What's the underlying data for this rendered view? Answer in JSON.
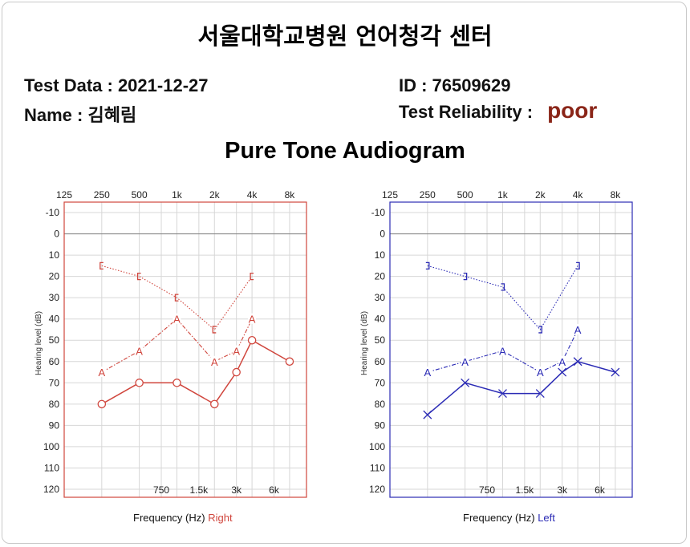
{
  "header": {
    "hospital": "서울대학교병원 언어청각 센터",
    "test_date_label": "Test Data : 2021-12-27",
    "name_label": "Name : 김혜림",
    "id_label": "ID : 76509629",
    "reliability_label": "Test Reliability :",
    "reliability_value": "poor"
  },
  "colors": {
    "right": "#d0463d",
    "left": "#2b2bb5",
    "poor": "#8a2518"
  },
  "chart_data": {
    "type": "line",
    "title": "Pure Tone Audiogram",
    "xlabel": "Frequency (Hz)",
    "ylabel": "Hearing level (dB)",
    "x_top_ticks": [
      "125",
      "250",
      "500",
      "1k",
      "2k",
      "4k",
      "8k"
    ],
    "x_bottom_ticks": [
      "750",
      "1.5k",
      "3k",
      "6k"
    ],
    "y_ticks": [
      "-10",
      "0",
      "10",
      "20",
      "30",
      "40",
      "50",
      "60",
      "70",
      "80",
      "90",
      "100",
      "110",
      "120"
    ],
    "ylim": [
      -10,
      120
    ],
    "grid": true,
    "charts": [
      {
        "ear": "Right",
        "border_color": "#d0463d",
        "series": [
          {
            "symbol": "bracket",
            "line": "dotted",
            "points": [
              {
                "x": "250",
                "y": 15
              },
              {
                "x": "500",
                "y": 20
              },
              {
                "x": "1k",
                "y": 30
              },
              {
                "x": "2k",
                "y": 45
              },
              {
                "x": "4k",
                "y": 20
              }
            ]
          },
          {
            "symbol": "A",
            "line": "dashdot",
            "points": [
              {
                "x": "250",
                "y": 65
              },
              {
                "x": "500",
                "y": 55
              },
              {
                "x": "1k",
                "y": 40
              },
              {
                "x": "2k",
                "y": 60
              },
              {
                "x": "3k",
                "y": 55
              },
              {
                "x": "4k",
                "y": 40
              }
            ]
          },
          {
            "symbol": "O",
            "line": "solid",
            "points": [
              {
                "x": "250",
                "y": 80
              },
              {
                "x": "500",
                "y": 70
              },
              {
                "x": "1k",
                "y": 70
              },
              {
                "x": "2k",
                "y": 80
              },
              {
                "x": "3k",
                "y": 65
              },
              {
                "x": "4k",
                "y": 50
              },
              {
                "x": "8k",
                "y": 60
              }
            ]
          }
        ]
      },
      {
        "ear": "Left",
        "border_color": "#2b2bb5",
        "series": [
          {
            "symbol": "bracket",
            "line": "dotted",
            "points": [
              {
                "x": "250",
                "y": 15
              },
              {
                "x": "500",
                "y": 20
              },
              {
                "x": "1k",
                "y": 25
              },
              {
                "x": "2k",
                "y": 45
              },
              {
                "x": "4k",
                "y": 15
              }
            ]
          },
          {
            "symbol": "A",
            "line": "dashdot",
            "points": [
              {
                "x": "250",
                "y": 65
              },
              {
                "x": "500",
                "y": 60
              },
              {
                "x": "1k",
                "y": 55
              },
              {
                "x": "2k",
                "y": 65
              },
              {
                "x": "3k",
                "y": 60
              },
              {
                "x": "4k",
                "y": 45
              }
            ]
          },
          {
            "symbol": "X",
            "line": "solid",
            "points": [
              {
                "x": "250",
                "y": 85
              },
              {
                "x": "500",
                "y": 70
              },
              {
                "x": "1k",
                "y": 75
              },
              {
                "x": "2k",
                "y": 75
              },
              {
                "x": "3k",
                "y": 65
              },
              {
                "x": "4k",
                "y": 60
              },
              {
                "x": "8k",
                "y": 65
              }
            ]
          }
        ]
      }
    ]
  }
}
